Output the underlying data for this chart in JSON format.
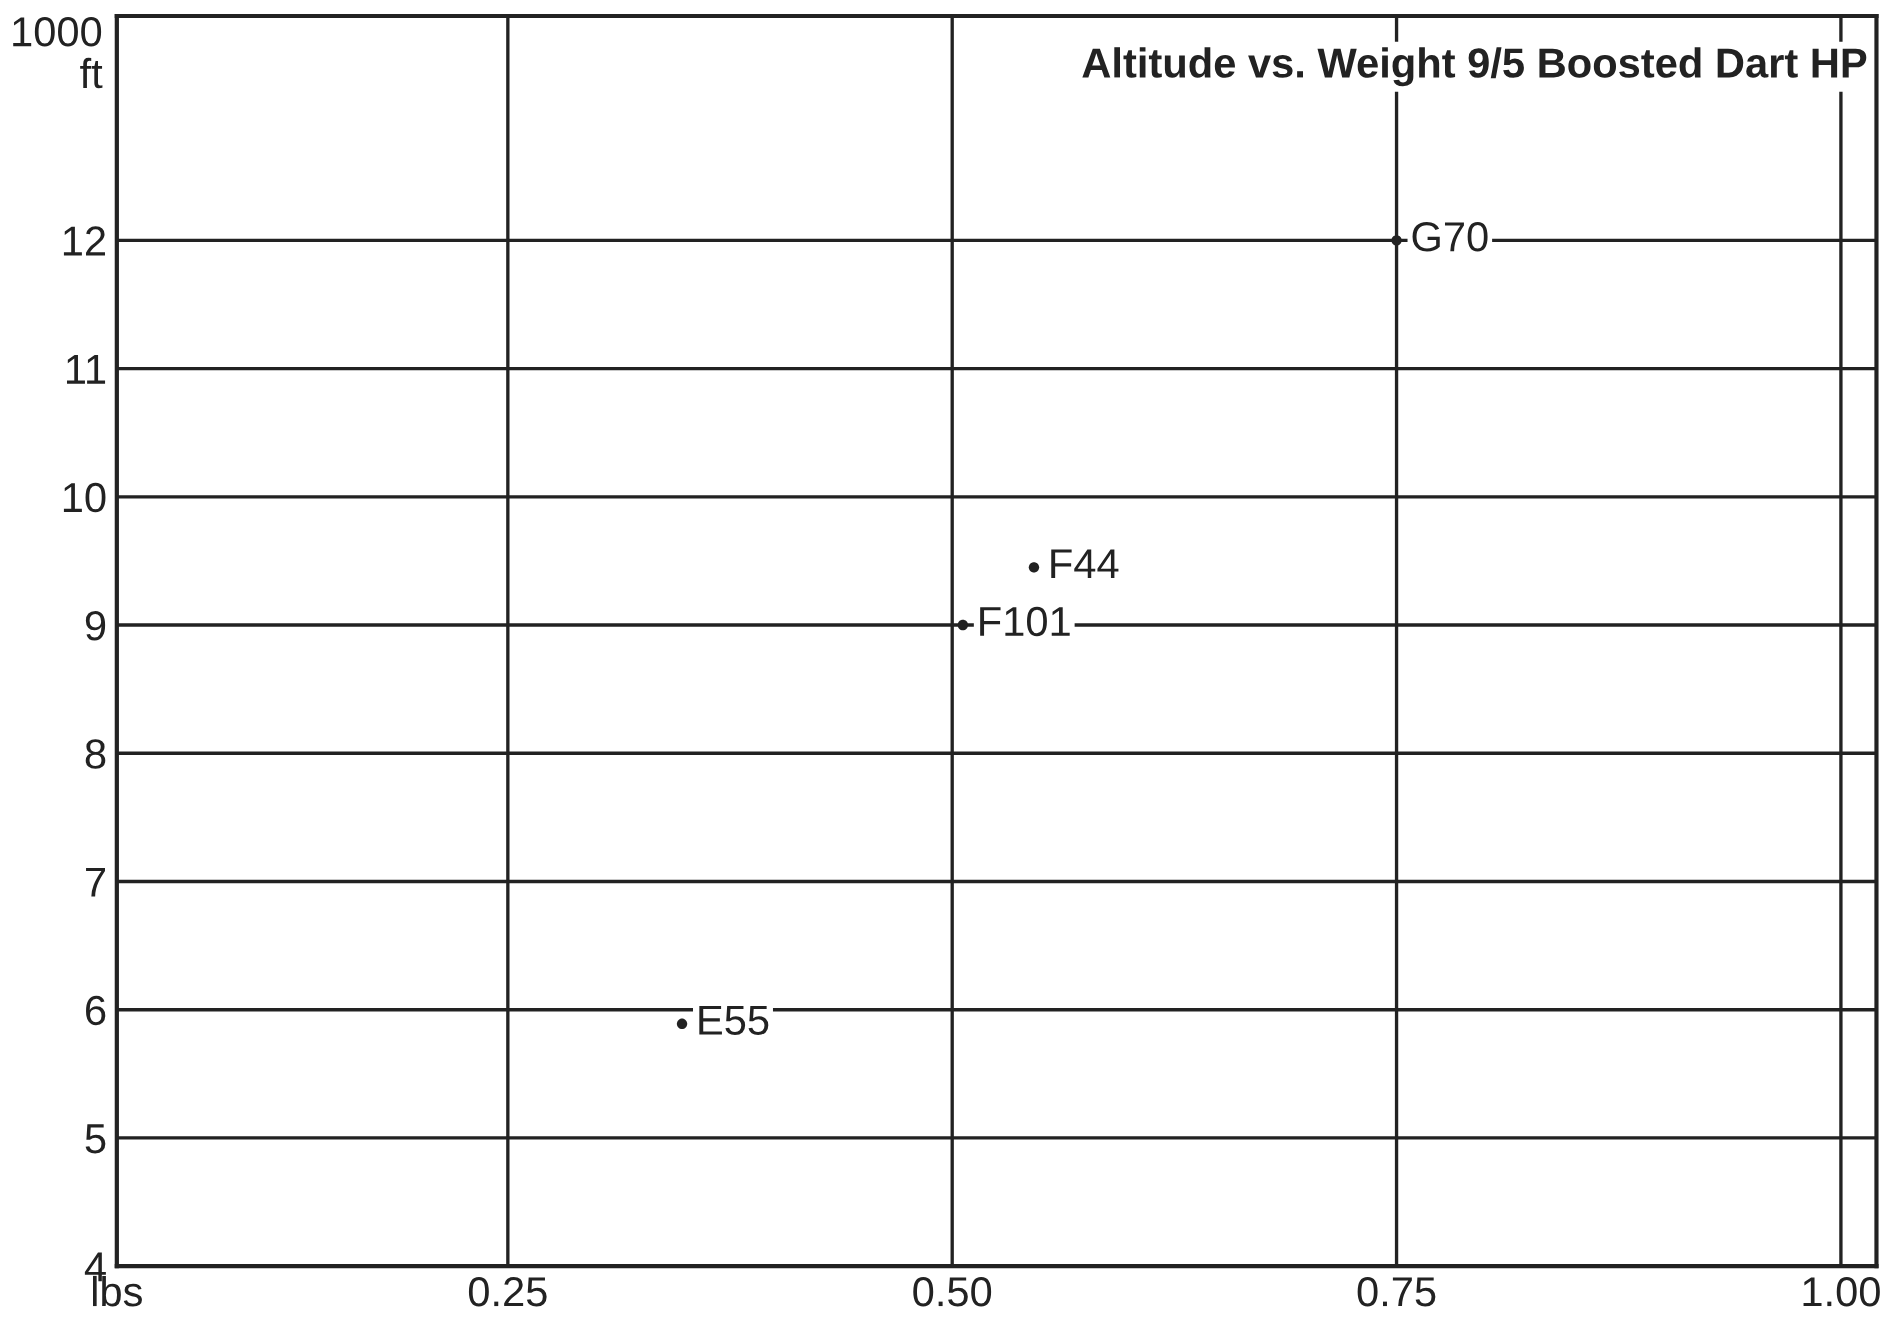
{
  "chart_data": {
    "type": "scatter",
    "title": "Altitude vs. Weight 9/5 Boosted Dart HP",
    "x": [
      0.348,
      0.506,
      0.546,
      0.75
    ],
    "series": [
      {
        "color": "#222222",
        "values": [
          5.89,
          9.0,
          9.45,
          12.0
        ],
        "value_labels": [
          "E55",
          "F101",
          "F44",
          "G70"
        ]
      }
    ],
    "xlim": [
      0.03,
      1.02
    ],
    "ylim": [
      4,
      13.75
    ],
    "xticks": [
      {
        "value": 0.03,
        "label": "lbs"
      },
      {
        "value": 0.25,
        "label": "0.25"
      },
      {
        "value": 0.5,
        "label": "0.50"
      },
      {
        "value": 0.75,
        "label": "0.75"
      },
      {
        "value": 1.0,
        "label": "1.00"
      }
    ],
    "yticks": [
      4,
      5,
      6,
      7,
      8,
      9,
      10,
      11,
      12
    ],
    "ylabel": "1000\nft",
    "grid": true,
    "marker": "circle",
    "legend": false
  }
}
